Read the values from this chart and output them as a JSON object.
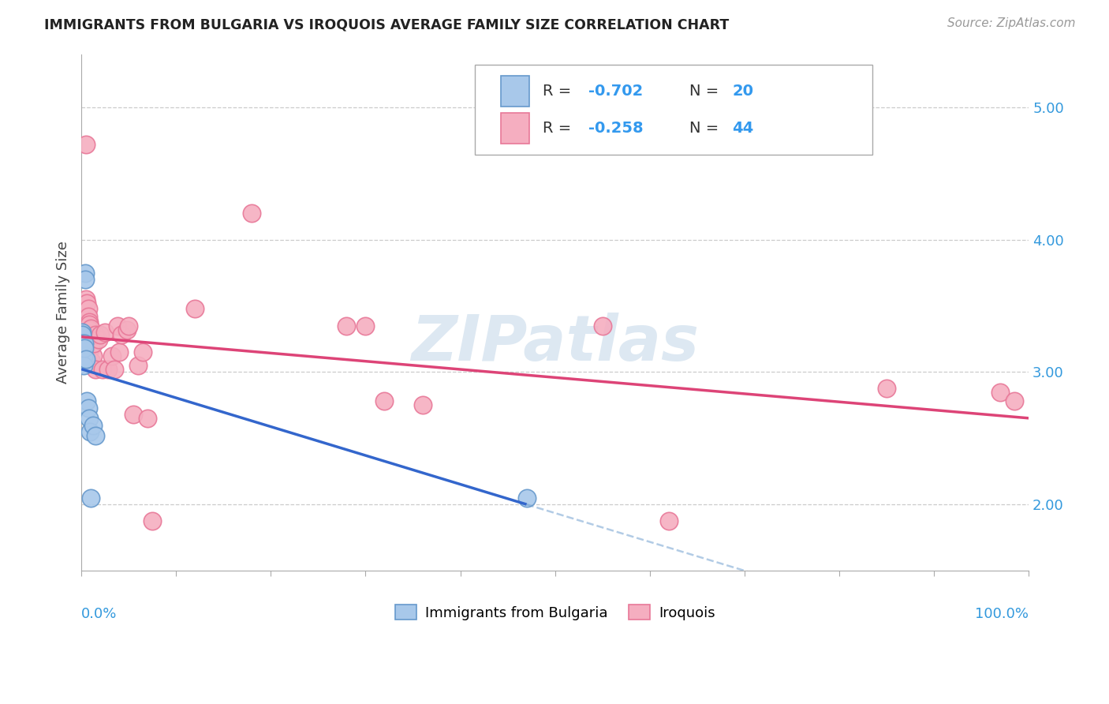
{
  "title": "IMMIGRANTS FROM BULGARIA VS IROQUOIS AVERAGE FAMILY SIZE CORRELATION CHART",
  "source": "Source: ZipAtlas.com",
  "ylabel": "Average Family Size",
  "yticks": [
    2.0,
    3.0,
    4.0,
    5.0
  ],
  "xlim": [
    0.0,
    1.0
  ],
  "ylim": [
    1.5,
    5.4
  ],
  "legend_R1": "-0.702",
  "legend_N1": "20",
  "legend_R2": "-0.258",
  "legend_N2": "44",
  "legend_label1": "Immigrants from Bulgaria",
  "legend_label2": "Iroquois",
  "bulgaria_x": [
    0.0005,
    0.001,
    0.001,
    0.0015,
    0.002,
    0.002,
    0.0025,
    0.003,
    0.003,
    0.004,
    0.004,
    0.005,
    0.006,
    0.007,
    0.008,
    0.009,
    0.01,
    0.012,
    0.015,
    0.47
  ],
  "bulgaria_y": [
    3.3,
    3.28,
    3.22,
    3.18,
    3.12,
    3.05,
    3.2,
    3.22,
    3.18,
    3.75,
    3.7,
    3.1,
    2.78,
    2.73,
    2.65,
    2.55,
    2.05,
    2.6,
    2.52,
    2.05
  ],
  "iroquois_x": [
    0.005,
    0.005,
    0.006,
    0.007,
    0.007,
    0.008,
    0.008,
    0.009,
    0.009,
    0.01,
    0.01,
    0.011,
    0.012,
    0.013,
    0.015,
    0.015,
    0.018,
    0.02,
    0.022,
    0.025,
    0.028,
    0.032,
    0.035,
    0.038,
    0.04,
    0.042,
    0.048,
    0.05,
    0.055,
    0.06,
    0.065,
    0.07,
    0.075,
    0.12,
    0.18,
    0.28,
    0.3,
    0.32,
    0.36,
    0.55,
    0.62,
    0.85,
    0.97,
    0.985
  ],
  "iroquois_y": [
    4.72,
    3.55,
    3.52,
    3.48,
    3.42,
    3.38,
    3.36,
    3.32,
    3.28,
    3.33,
    3.18,
    3.08,
    3.12,
    3.22,
    3.02,
    3.28,
    3.25,
    3.28,
    3.02,
    3.3,
    3.02,
    3.12,
    3.02,
    3.35,
    3.15,
    3.28,
    3.32,
    3.35,
    2.68,
    3.05,
    3.15,
    2.65,
    1.88,
    3.48,
    4.2,
    3.35,
    3.35,
    2.78,
    2.75,
    3.35,
    1.88,
    2.88,
    2.85,
    2.78
  ],
  "bulgaria_color": "#a8c8ea",
  "iroquois_color": "#f5aec0",
  "bulgaria_edge": "#6699cc",
  "iroquois_edge": "#e87898",
  "bg_color": "#ffffff",
  "grid_color": "#cccccc",
  "watermark": "ZIPatlas",
  "watermark_color": "#dde8f2",
  "xtick_positions": [
    0.0,
    0.1,
    0.2,
    0.3,
    0.4,
    0.5,
    0.6,
    0.7,
    0.8,
    0.9,
    1.0
  ]
}
